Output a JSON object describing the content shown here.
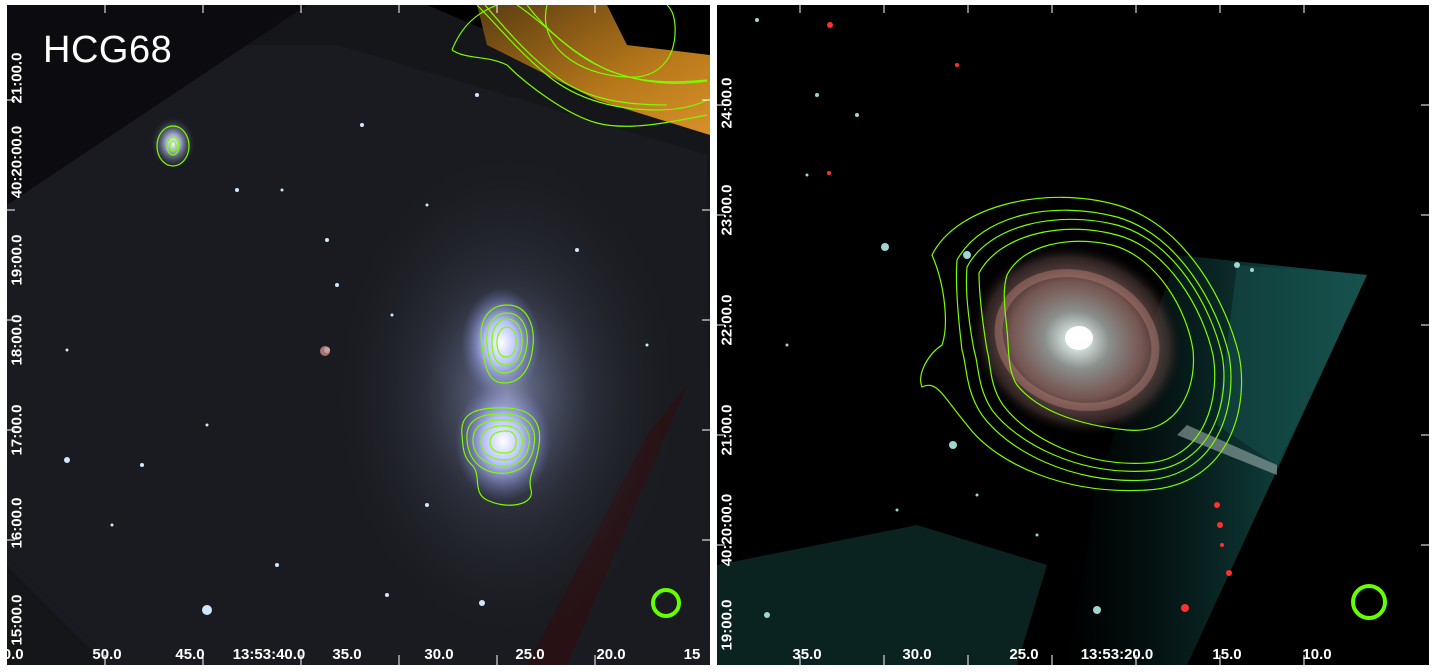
{
  "left_panel": {
    "title": "HCG68",
    "x_ticks": [
      "50.0",
      "45.0",
      "13:53:40.0",
      "35.0",
      "30.0",
      "25.0",
      "20.0",
      "15"
    ],
    "y_ticks": [
      "15:00.0",
      "16:00.0",
      "17:00.0",
      "18:00.0",
      "19:00.0",
      "40:20:00.0",
      "21:00.0"
    ]
  },
  "right_panel": {
    "x_ticks": [
      "35.0",
      "30.0",
      "25.0",
      "13:53:20.0",
      "15.0",
      "10.0"
    ],
    "y_ticks": [
      "19:00.0",
      "40:20:00.0",
      "21:00.0",
      "22:00.0",
      "23:00.0",
      "24:00.0"
    ]
  },
  "colors": {
    "contour": "#7CFC00",
    "beam": "#66ff00",
    "background": "#000000"
  }
}
